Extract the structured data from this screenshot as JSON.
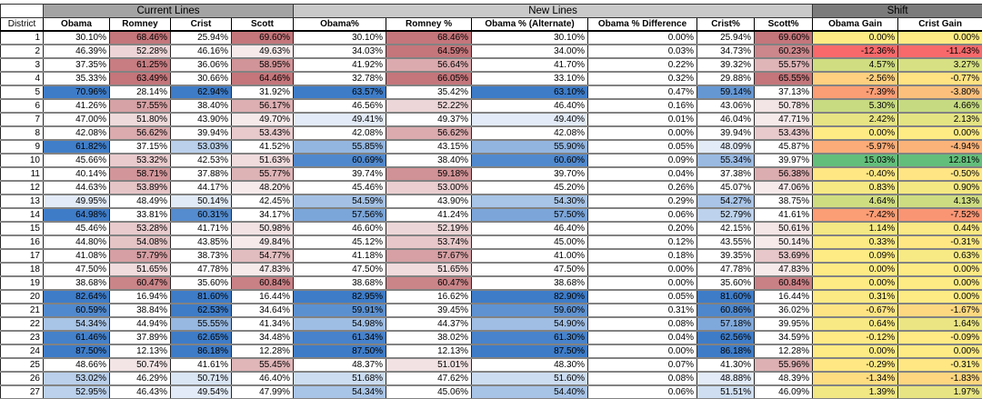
{
  "groups": {
    "current": "Current Lines",
    "new": "New Lines",
    "shift": "Shift"
  },
  "headers": {
    "district": "District",
    "obama": "Obama",
    "romney": "Romney",
    "crist": "Crist",
    "scott": "Scott",
    "obama_pct": "Obama%",
    "romney_pct": "Romney %",
    "obama_alt": "Obama % (Alternate)",
    "obama_diff": "Obama % Difference",
    "crist_pct": "Crist%",
    "scott_pct": "Scott%",
    "obama_gain": "Obama Gain",
    "crist_gain": "Crist Gain"
  },
  "colors": {
    "group_current_bg": "#a3a3a3",
    "group_new_bg": "#c9c9c9",
    "group_shift_bg": "#7b7b7b",
    "dem_full": "#3E7CC8",
    "rep_full": "#C4767B",
    "gain_negative": "#F8696B",
    "gain_mid": "#FFEB84",
    "gain_positive": "#63BE7B"
  },
  "rows": [
    {
      "district": "1",
      "obama": "30.10%",
      "romney": "68.46%",
      "crist": "25.94%",
      "scott": "69.60%",
      "obama_pct": "30.10%",
      "romney_pct": "68.46%",
      "obama_alt": "30.10%",
      "obama_diff": "0.00%",
      "crist_pct": "25.94%",
      "scott_pct": "69.60%",
      "obama_gain": "0.00%",
      "crist_gain": "0.00%"
    },
    {
      "district": "2",
      "obama": "46.39%",
      "romney": "52.28%",
      "crist": "46.16%",
      "scott": "49.63%",
      "obama_pct": "34.03%",
      "romney_pct": "64.59%",
      "obama_alt": "34.00%",
      "obama_diff": "0.03%",
      "crist_pct": "34.73%",
      "scott_pct": "60.23%",
      "obama_gain": "-12.36%",
      "crist_gain": "-11.43%"
    },
    {
      "district": "3",
      "obama": "37.35%",
      "romney": "61.25%",
      "crist": "36.06%",
      "scott": "58.95%",
      "obama_pct": "41.92%",
      "romney_pct": "56.64%",
      "obama_alt": "41.70%",
      "obama_diff": "0.22%",
      "crist_pct": "39.32%",
      "scott_pct": "55.57%",
      "obama_gain": "4.57%",
      "crist_gain": "3.27%"
    },
    {
      "district": "4",
      "obama": "35.33%",
      "romney": "63.49%",
      "crist": "30.66%",
      "scott": "64.46%",
      "obama_pct": "32.78%",
      "romney_pct": "66.05%",
      "obama_alt": "33.10%",
      "obama_diff": "0.32%",
      "crist_pct": "29.88%",
      "scott_pct": "65.55%",
      "obama_gain": "-2.56%",
      "crist_gain": "-0.77%"
    },
    {
      "district": "5",
      "obama": "70.96%",
      "romney": "28.14%",
      "crist": "62.94%",
      "scott": "31.92%",
      "obama_pct": "63.57%",
      "romney_pct": "35.42%",
      "obama_alt": "63.10%",
      "obama_diff": "0.47%",
      "crist_pct": "59.14%",
      "scott_pct": "37.13%",
      "obama_gain": "-7.39%",
      "crist_gain": "-3.80%"
    },
    {
      "district": "6",
      "obama": "41.26%",
      "romney": "57.55%",
      "crist": "38.40%",
      "scott": "56.17%",
      "obama_pct": "46.56%",
      "romney_pct": "52.22%",
      "obama_alt": "46.40%",
      "obama_diff": "0.16%",
      "crist_pct": "43.06%",
      "scott_pct": "50.78%",
      "obama_gain": "5.30%",
      "crist_gain": "4.66%"
    },
    {
      "district": "7",
      "obama": "47.00%",
      "romney": "51.80%",
      "crist": "43.90%",
      "scott": "49.70%",
      "obama_pct": "49.41%",
      "romney_pct": "49.37%",
      "obama_alt": "49.40%",
      "obama_diff": "0.01%",
      "crist_pct": "46.04%",
      "scott_pct": "47.71%",
      "obama_gain": "2.42%",
      "crist_gain": "2.13%"
    },
    {
      "district": "8",
      "obama": "42.08%",
      "romney": "56.62%",
      "crist": "39.94%",
      "scott": "53.43%",
      "obama_pct": "42.08%",
      "romney_pct": "56.62%",
      "obama_alt": "42.08%",
      "obama_diff": "0.00%",
      "crist_pct": "39.94%",
      "scott_pct": "53.43%",
      "obama_gain": "0.00%",
      "crist_gain": "0.00%"
    },
    {
      "district": "9",
      "obama": "61.82%",
      "romney": "37.15%",
      "crist": "53.03%",
      "scott": "41.52%",
      "obama_pct": "55.85%",
      "romney_pct": "43.15%",
      "obama_alt": "55.90%",
      "obama_diff": "0.05%",
      "crist_pct": "48.09%",
      "scott_pct": "45.87%",
      "obama_gain": "-5.97%",
      "crist_gain": "-4.94%"
    },
    {
      "district": "10",
      "obama": "45.66%",
      "romney": "53.32%",
      "crist": "42.53%",
      "scott": "51.63%",
      "obama_pct": "60.69%",
      "romney_pct": "38.40%",
      "obama_alt": "60.60%",
      "obama_diff": "0.09%",
      "crist_pct": "55.34%",
      "scott_pct": "39.97%",
      "obama_gain": "15.03%",
      "crist_gain": "12.81%"
    },
    {
      "district": "11",
      "obama": "40.14%",
      "romney": "58.71%",
      "crist": "37.88%",
      "scott": "55.77%",
      "obama_pct": "39.74%",
      "romney_pct": "59.18%",
      "obama_alt": "39.70%",
      "obama_diff": "0.04%",
      "crist_pct": "37.38%",
      "scott_pct": "56.38%",
      "obama_gain": "-0.40%",
      "crist_gain": "-0.50%"
    },
    {
      "district": "12",
      "obama": "44.63%",
      "romney": "53.89%",
      "crist": "44.17%",
      "scott": "48.20%",
      "obama_pct": "45.46%",
      "romney_pct": "53.00%",
      "obama_alt": "45.20%",
      "obama_diff": "0.26%",
      "crist_pct": "45.07%",
      "scott_pct": "47.06%",
      "obama_gain": "0.83%",
      "crist_gain": "0.90%"
    },
    {
      "district": "13",
      "obama": "49.95%",
      "romney": "48.49%",
      "crist": "50.14%",
      "scott": "42.45%",
      "obama_pct": "54.59%",
      "romney_pct": "43.90%",
      "obama_alt": "54.30%",
      "obama_diff": "0.29%",
      "crist_pct": "54.27%",
      "scott_pct": "38.75%",
      "obama_gain": "4.64%",
      "crist_gain": "4.13%"
    },
    {
      "district": "14",
      "obama": "64.98%",
      "romney": "33.81%",
      "crist": "60.31%",
      "scott": "34.17%",
      "obama_pct": "57.56%",
      "romney_pct": "41.24%",
      "obama_alt": "57.50%",
      "obama_diff": "0.06%",
      "crist_pct": "52.79%",
      "scott_pct": "41.61%",
      "obama_gain": "-7.42%",
      "crist_gain": "-7.52%"
    },
    {
      "district": "15",
      "obama": "45.46%",
      "romney": "53.28%",
      "crist": "41.71%",
      "scott": "50.98%",
      "obama_pct": "46.60%",
      "romney_pct": "52.19%",
      "obama_alt": "46.40%",
      "obama_diff": "0.20%",
      "crist_pct": "42.15%",
      "scott_pct": "50.61%",
      "obama_gain": "1.14%",
      "crist_gain": "0.44%"
    },
    {
      "district": "16",
      "obama": "44.80%",
      "romney": "54.08%",
      "crist": "43.85%",
      "scott": "49.84%",
      "obama_pct": "45.12%",
      "romney_pct": "53.74%",
      "obama_alt": "45.00%",
      "obama_diff": "0.12%",
      "crist_pct": "43.55%",
      "scott_pct": "50.14%",
      "obama_gain": "0.33%",
      "crist_gain": "-0.31%"
    },
    {
      "district": "17",
      "obama": "41.08%",
      "romney": "57.79%",
      "crist": "38.73%",
      "scott": "54.77%",
      "obama_pct": "41.18%",
      "romney_pct": "57.67%",
      "obama_alt": "41.00%",
      "obama_diff": "0.18%",
      "crist_pct": "39.35%",
      "scott_pct": "53.69%",
      "obama_gain": "0.09%",
      "crist_gain": "0.63%"
    },
    {
      "district": "18",
      "obama": "47.50%",
      "romney": "51.65%",
      "crist": "47.78%",
      "scott": "47.83%",
      "obama_pct": "47.50%",
      "romney_pct": "51.65%",
      "obama_alt": "47.50%",
      "obama_diff": "0.00%",
      "crist_pct": "47.78%",
      "scott_pct": "47.83%",
      "obama_gain": "0.00%",
      "crist_gain": "0.00%"
    },
    {
      "district": "19",
      "obama": "38.68%",
      "romney": "60.47%",
      "crist": "35.60%",
      "scott": "60.84%",
      "obama_pct": "38.68%",
      "romney_pct": "60.47%",
      "obama_alt": "38.68%",
      "obama_diff": "0.00%",
      "crist_pct": "35.60%",
      "scott_pct": "60.84%",
      "obama_gain": "0.00%",
      "crist_gain": "0.00%"
    },
    {
      "district": "20",
      "obama": "82.64%",
      "romney": "16.94%",
      "crist": "81.60%",
      "scott": "16.44%",
      "obama_pct": "82.95%",
      "romney_pct": "16.62%",
      "obama_alt": "82.90%",
      "obama_diff": "0.05%",
      "crist_pct": "81.60%",
      "scott_pct": "16.44%",
      "obama_gain": "0.31%",
      "crist_gain": "0.00%"
    },
    {
      "district": "21",
      "obama": "60.59%",
      "romney": "38.84%",
      "crist": "62.53%",
      "scott": "34.64%",
      "obama_pct": "59.91%",
      "romney_pct": "39.45%",
      "obama_alt": "59.60%",
      "obama_diff": "0.31%",
      "crist_pct": "60.86%",
      "scott_pct": "36.02%",
      "obama_gain": "-0.67%",
      "crist_gain": "-1.67%"
    },
    {
      "district": "22",
      "obama": "54.34%",
      "romney": "44.94%",
      "crist": "55.55%",
      "scott": "41.34%",
      "obama_pct": "54.98%",
      "romney_pct": "44.37%",
      "obama_alt": "54.90%",
      "obama_diff": "0.08%",
      "crist_pct": "57.18%",
      "scott_pct": "39.95%",
      "obama_gain": "0.64%",
      "crist_gain": "1.64%"
    },
    {
      "district": "23",
      "obama": "61.46%",
      "romney": "37.89%",
      "crist": "62.65%",
      "scott": "34.48%",
      "obama_pct": "61.34%",
      "romney_pct": "38.02%",
      "obama_alt": "61.30%",
      "obama_diff": "0.04%",
      "crist_pct": "62.56%",
      "scott_pct": "34.59%",
      "obama_gain": "-0.12%",
      "crist_gain": "-0.09%"
    },
    {
      "district": "24",
      "obama": "87.50%",
      "romney": "12.13%",
      "crist": "86.18%",
      "scott": "12.28%",
      "obama_pct": "87.50%",
      "romney_pct": "12.13%",
      "obama_alt": "87.50%",
      "obama_diff": "0.00%",
      "crist_pct": "86.18%",
      "scott_pct": "12.28%",
      "obama_gain": "0.00%",
      "crist_gain": "0.00%"
    },
    {
      "district": "25",
      "obama": "48.66%",
      "romney": "50.74%",
      "crist": "41.61%",
      "scott": "55.45%",
      "obama_pct": "48.37%",
      "romney_pct": "51.01%",
      "obama_alt": "48.30%",
      "obama_diff": "0.07%",
      "crist_pct": "41.30%",
      "scott_pct": "55.96%",
      "obama_gain": "-0.29%",
      "crist_gain": "-0.31%"
    },
    {
      "district": "26",
      "obama": "53.02%",
      "romney": "46.29%",
      "crist": "50.71%",
      "scott": "46.40%",
      "obama_pct": "51.68%",
      "romney_pct": "47.62%",
      "obama_alt": "51.60%",
      "obama_diff": "0.08%",
      "crist_pct": "48.88%",
      "scott_pct": "48.39%",
      "obama_gain": "-1.34%",
      "crist_gain": "-1.83%"
    },
    {
      "district": "27",
      "obama": "52.95%",
      "romney": "46.43%",
      "crist": "49.54%",
      "scott": "47.99%",
      "obama_pct": "54.34%",
      "romney_pct": "45.06%",
      "obama_alt": "54.40%",
      "obama_diff": "0.06%",
      "crist_pct": "51.51%",
      "scott_pct": "46.09%",
      "obama_gain": "1.39%",
      "crist_gain": "1.97%"
    }
  ]
}
